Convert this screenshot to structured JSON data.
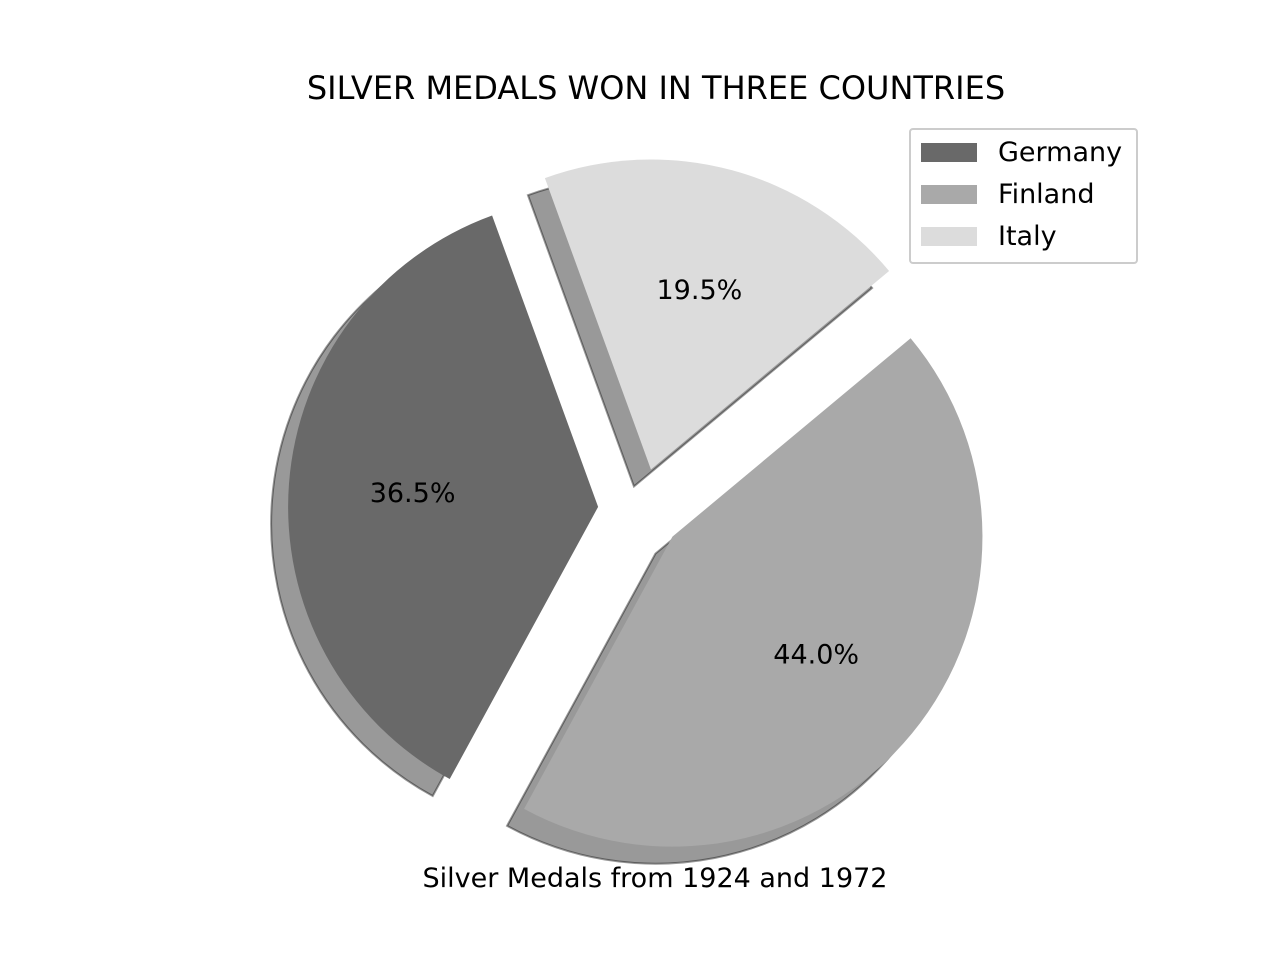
{
  "chart_data": {
    "type": "pie",
    "title": "SILVER MEDALS WON IN THREE COUNTRIES",
    "xlabel": "Silver Medals from 1924 and 1972",
    "categories": [
      "Germany",
      "Finland",
      "Italy"
    ],
    "values": [
      36.5,
      44.0,
      19.5
    ],
    "percent_labels": [
      "36.5%",
      "44.0%",
      "19.5%"
    ],
    "colors": [
      "#696969",
      "#a9a9a9",
      "#dcdcdc"
    ],
    "exploded": true,
    "shadow": true,
    "legend_position": "upper-right"
  }
}
